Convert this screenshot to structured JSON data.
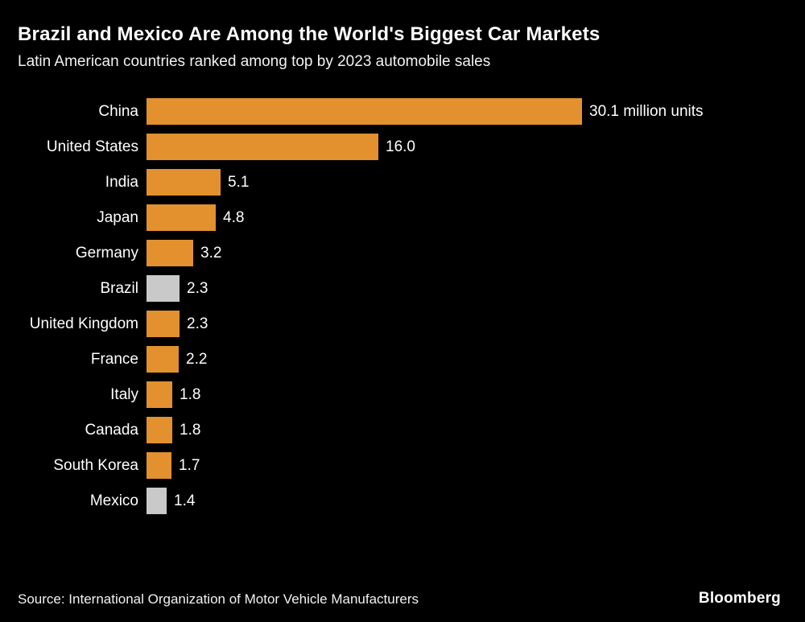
{
  "header": {
    "title": "Brazil and Mexico Are Among the World's Biggest Car Markets",
    "subtitle": "Latin American countries ranked among top by 2023 automobile sales"
  },
  "footer": {
    "source": "Source: International Organization of Motor Vehicle Manufacturers",
    "logo": "Bloomberg"
  },
  "colors": {
    "bar_default": "#E2912E",
    "bar_highlight": "#C9C9C9",
    "background": "#000000",
    "text": "#FFFFFF"
  },
  "chart_data": {
    "type": "bar",
    "orientation": "horizontal",
    "title": "Brazil and Mexico Are Among the World's Biggest Car Markets",
    "subtitle": "Latin American countries ranked among top by 2023 automobile sales",
    "xlabel": "",
    "ylabel": "",
    "xlim": [
      0,
      30.1
    ],
    "grid": false,
    "legend": false,
    "unit": "million units",
    "categories": [
      "China",
      "United States",
      "India",
      "Japan",
      "Germany",
      "Brazil",
      "United Kingdom",
      "France",
      "Italy",
      "Canada",
      "South Korea",
      "Mexico"
    ],
    "values": [
      30.1,
      16.0,
      5.1,
      4.8,
      3.2,
      2.3,
      2.3,
      2.2,
      1.8,
      1.8,
      1.7,
      1.4
    ],
    "value_labels": [
      "30.1 million units",
      "16.0",
      "5.1",
      "4.8",
      "3.2",
      "2.3",
      "2.3",
      "2.2",
      "1.8",
      "1.8",
      "1.7",
      "1.4"
    ],
    "highlighted_categories": [
      "Brazil",
      "Mexico"
    ]
  }
}
